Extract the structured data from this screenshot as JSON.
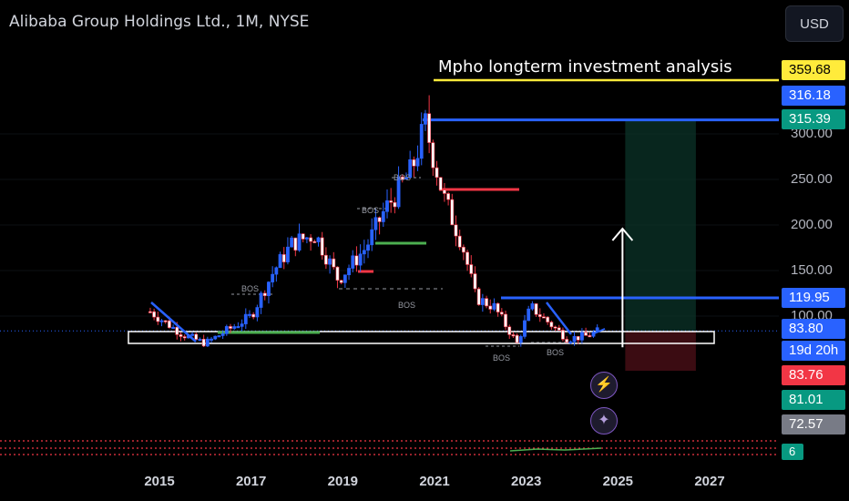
{
  "header": {
    "title": "Alibaba Group Holdings Ltd., 1M, NYSE",
    "currency_button": "USD"
  },
  "annotation_title": "Mpho longterm investment analysis",
  "bos_label": "BOS",
  "price_tags": [
    {
      "label": "359.68",
      "bg": "#ffeb3b",
      "fg": "#000000"
    },
    {
      "label": "316.18",
      "bg": "#2962ff",
      "fg": "#ffffff"
    },
    {
      "label": "315.39",
      "bg": "#089981",
      "fg": "#ffffff"
    },
    {
      "label": "119.95",
      "bg": "#2962ff",
      "fg": "#ffffff"
    },
    {
      "label": "83.80",
      "bg": "#2962ff",
      "fg": "#ffffff"
    },
    {
      "label": "19d 20h",
      "bg": "#2962ff",
      "fg": "#ffffff"
    },
    {
      "label": "83.76",
      "bg": "#f23645",
      "fg": "#ffffff"
    },
    {
      "label": "81.01",
      "bg": "#089981",
      "fg": "#ffffff"
    },
    {
      "label": "72.57",
      "bg": "#787b86",
      "fg": "#ffffff"
    }
  ],
  "indicator_tag": "6",
  "icons": {
    "lightning": "lightning-icon",
    "sparkle": "sparkle-icon"
  },
  "chart_data": {
    "type": "candlestick",
    "symbol": "Alibaba Group Holdings Ltd., 1M, NYSE",
    "y_axis_ticks": [
      300,
      250,
      200,
      150,
      100
    ],
    "y_axis_labels": [
      "300.00",
      "250.00",
      "200.00",
      "150.00",
      "100.00"
    ],
    "x_axis_labels": [
      "2015",
      "2017",
      "2019",
      "2021",
      "2023",
      "2025",
      "2027"
    ],
    "ylim": [
      40,
      380
    ],
    "levels": {
      "annotation_line": 359.68,
      "all_time_high_line": 315.39,
      "resistance_line": 119.95,
      "last_price": 83.8,
      "support_zone": [
        72,
        86
      ]
    },
    "approx_monthly_close_by_year": [
      {
        "year": 2014.8,
        "close": 105
      },
      {
        "year": 2015.5,
        "close": 80
      },
      {
        "year": 2016.0,
        "close": 70
      },
      {
        "year": 2016.5,
        "close": 85
      },
      {
        "year": 2017.0,
        "close": 100
      },
      {
        "year": 2017.5,
        "close": 150
      },
      {
        "year": 2017.9,
        "close": 180
      },
      {
        "year": 2018.4,
        "close": 190
      },
      {
        "year": 2018.9,
        "close": 140
      },
      {
        "year": 2019.5,
        "close": 175
      },
      {
        "year": 2019.9,
        "close": 215
      },
      {
        "year": 2020.5,
        "close": 260
      },
      {
        "year": 2020.8,
        "close": 310
      },
      {
        "year": 2021.2,
        "close": 230
      },
      {
        "year": 2021.6,
        "close": 180
      },
      {
        "year": 2021.9,
        "close": 120
      },
      {
        "year": 2022.3,
        "close": 110
      },
      {
        "year": 2022.8,
        "close": 70
      },
      {
        "year": 2023.1,
        "close": 110
      },
      {
        "year": 2023.6,
        "close": 88
      },
      {
        "year": 2023.9,
        "close": 75
      },
      {
        "year": 2024.3,
        "close": 78
      },
      {
        "year": 2024.6,
        "close": 83.8
      }
    ],
    "projection": {
      "entry": 83.8,
      "target": 315.39,
      "stop": 40,
      "from_year": 2025.1,
      "to_year": 2026.7
    }
  }
}
